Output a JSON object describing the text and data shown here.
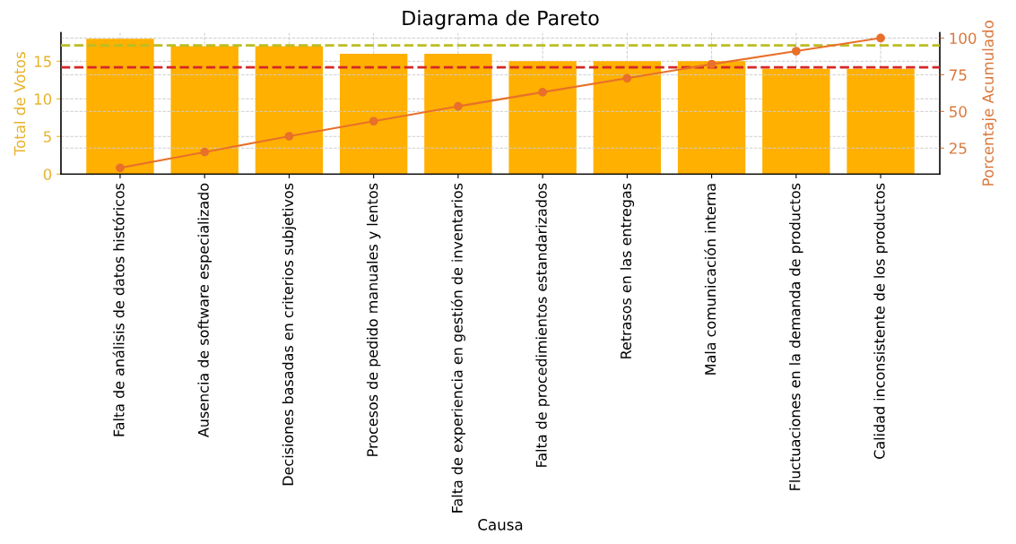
{
  "chart_data": {
    "type": "bar",
    "title": "Diagrama de Pareto",
    "xlabel": "Causa",
    "ylabel": "Total de Votos",
    "y2label": "Porcentaje Acumulado",
    "categories": [
      "Falta de análisis de datos históricos",
      "Ausencia de software especializado",
      "Decisiones basadas en criterios subjetivos",
      "Procesos de pedido manuales y lentos",
      "Falta de experiencia en gestión de inventarios",
      "Falta de procedimientos estandarizados",
      "Retrasos en las entregas",
      "Mala comunicación interna",
      "Fluctuaciones en la demanda de productos",
      "Calidad inconsistente de los productos"
    ],
    "series": [
      {
        "color": "#ffb000",
        "values": [
          18,
          17,
          17,
          16,
          16,
          15,
          15,
          15,
          14,
          14
        ]
      },
      {
        "type": "line",
        "axis": "y2",
        "color": "#e8702a",
        "values": [
          11.5,
          22.3,
          33.1,
          43.3,
          53.5,
          63.1,
          72.6,
          82.2,
          91.1,
          100
        ]
      }
    ],
    "ylim": [
      0,
      18.8
    ],
    "yticks": [
      0,
      5,
      10,
      15
    ],
    "y2lim": [
      7.3,
      103.7
    ],
    "y2ticks": [
      25,
      50,
      75,
      100
    ],
    "ref_lines": [
      {
        "axis": "y2",
        "value": 95,
        "color": "#bcbd22",
        "line_style": "dashed"
      },
      {
        "axis": "y2",
        "value": 80,
        "color": "#d62728",
        "line_style": "dashed"
      }
    ],
    "grid": true,
    "marker": "circle",
    "line_style": "solid"
  }
}
